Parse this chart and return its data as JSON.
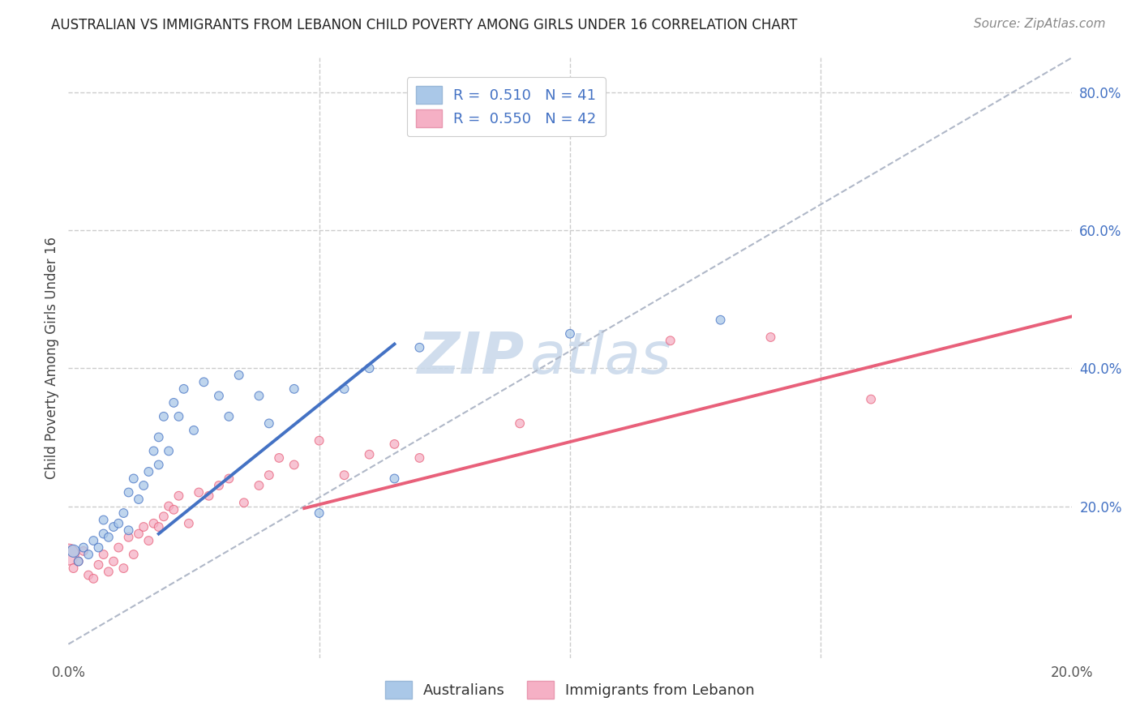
{
  "title": "AUSTRALIAN VS IMMIGRANTS FROM LEBANON CHILD POVERTY AMONG GIRLS UNDER 16 CORRELATION CHART",
  "source": "Source: ZipAtlas.com",
  "ylabel": "Child Poverty Among Girls Under 16",
  "xlim": [
    0.0,
    0.2
  ],
  "ylim": [
    -0.02,
    0.85
  ],
  "legend_r1": "R =  0.510",
  "legend_n1": "N = 41",
  "legend_r2": "R =  0.550",
  "legend_n2": "N = 42",
  "color_blue": "#aac8e8",
  "color_pink": "#f5b0c5",
  "line_blue": "#4472c4",
  "line_pink": "#e8607a",
  "watermark_zip": "ZIP",
  "watermark_atlas": "atlas",
  "background_color": "#ffffff",
  "grid_color": "#cccccc",
  "aus_blue_line_x": [
    0.018,
    0.065
  ],
  "aus_blue_line_y": [
    0.16,
    0.435
  ],
  "leb_pink_line_x": [
    0.047,
    0.2
  ],
  "leb_pink_line_y": [
    0.197,
    0.475
  ],
  "diag_line_x": [
    0.0,
    0.2
  ],
  "diag_line_y": [
    0.0,
    0.85
  ],
  "australians_x": [
    0.001,
    0.002,
    0.003,
    0.004,
    0.005,
    0.006,
    0.007,
    0.007,
    0.008,
    0.009,
    0.01,
    0.011,
    0.012,
    0.012,
    0.013,
    0.014,
    0.015,
    0.016,
    0.017,
    0.018,
    0.018,
    0.019,
    0.02,
    0.021,
    0.022,
    0.023,
    0.025,
    0.027,
    0.03,
    0.032,
    0.034,
    0.038,
    0.04,
    0.045,
    0.05,
    0.055,
    0.06,
    0.065,
    0.07,
    0.1,
    0.13
  ],
  "australians_y": [
    0.135,
    0.12,
    0.14,
    0.13,
    0.15,
    0.14,
    0.16,
    0.18,
    0.155,
    0.17,
    0.175,
    0.19,
    0.165,
    0.22,
    0.24,
    0.21,
    0.23,
    0.25,
    0.28,
    0.26,
    0.3,
    0.33,
    0.28,
    0.35,
    0.33,
    0.37,
    0.31,
    0.38,
    0.36,
    0.33,
    0.39,
    0.36,
    0.32,
    0.37,
    0.19,
    0.37,
    0.4,
    0.24,
    0.43,
    0.45,
    0.47
  ],
  "australians_sizes": [
    120,
    60,
    60,
    60,
    60,
    60,
    60,
    60,
    60,
    60,
    60,
    60,
    60,
    60,
    60,
    60,
    60,
    60,
    60,
    60,
    60,
    60,
    60,
    60,
    60,
    60,
    60,
    60,
    60,
    60,
    60,
    60,
    60,
    60,
    60,
    60,
    60,
    60,
    60,
    60,
    60
  ],
  "lebanon_x": [
    0.0,
    0.001,
    0.002,
    0.003,
    0.004,
    0.005,
    0.006,
    0.007,
    0.008,
    0.009,
    0.01,
    0.011,
    0.012,
    0.013,
    0.014,
    0.015,
    0.016,
    0.017,
    0.018,
    0.019,
    0.02,
    0.021,
    0.022,
    0.024,
    0.026,
    0.028,
    0.03,
    0.032,
    0.035,
    0.038,
    0.04,
    0.042,
    0.045,
    0.05,
    0.055,
    0.06,
    0.065,
    0.07,
    0.09,
    0.12,
    0.14,
    0.16
  ],
  "lebanon_y": [
    0.13,
    0.11,
    0.12,
    0.135,
    0.1,
    0.095,
    0.115,
    0.13,
    0.105,
    0.12,
    0.14,
    0.11,
    0.155,
    0.13,
    0.16,
    0.17,
    0.15,
    0.175,
    0.17,
    0.185,
    0.2,
    0.195,
    0.215,
    0.175,
    0.22,
    0.215,
    0.23,
    0.24,
    0.205,
    0.23,
    0.245,
    0.27,
    0.26,
    0.295,
    0.245,
    0.275,
    0.29,
    0.27,
    0.32,
    0.44,
    0.445,
    0.355
  ],
  "lebanon_sizes": [
    350,
    60,
    60,
    60,
    60,
    60,
    60,
    60,
    60,
    60,
    60,
    60,
    60,
    60,
    60,
    60,
    60,
    60,
    60,
    60,
    60,
    60,
    60,
    60,
    60,
    60,
    60,
    60,
    60,
    60,
    60,
    60,
    60,
    60,
    60,
    60,
    60,
    60,
    60,
    60,
    60,
    60
  ]
}
